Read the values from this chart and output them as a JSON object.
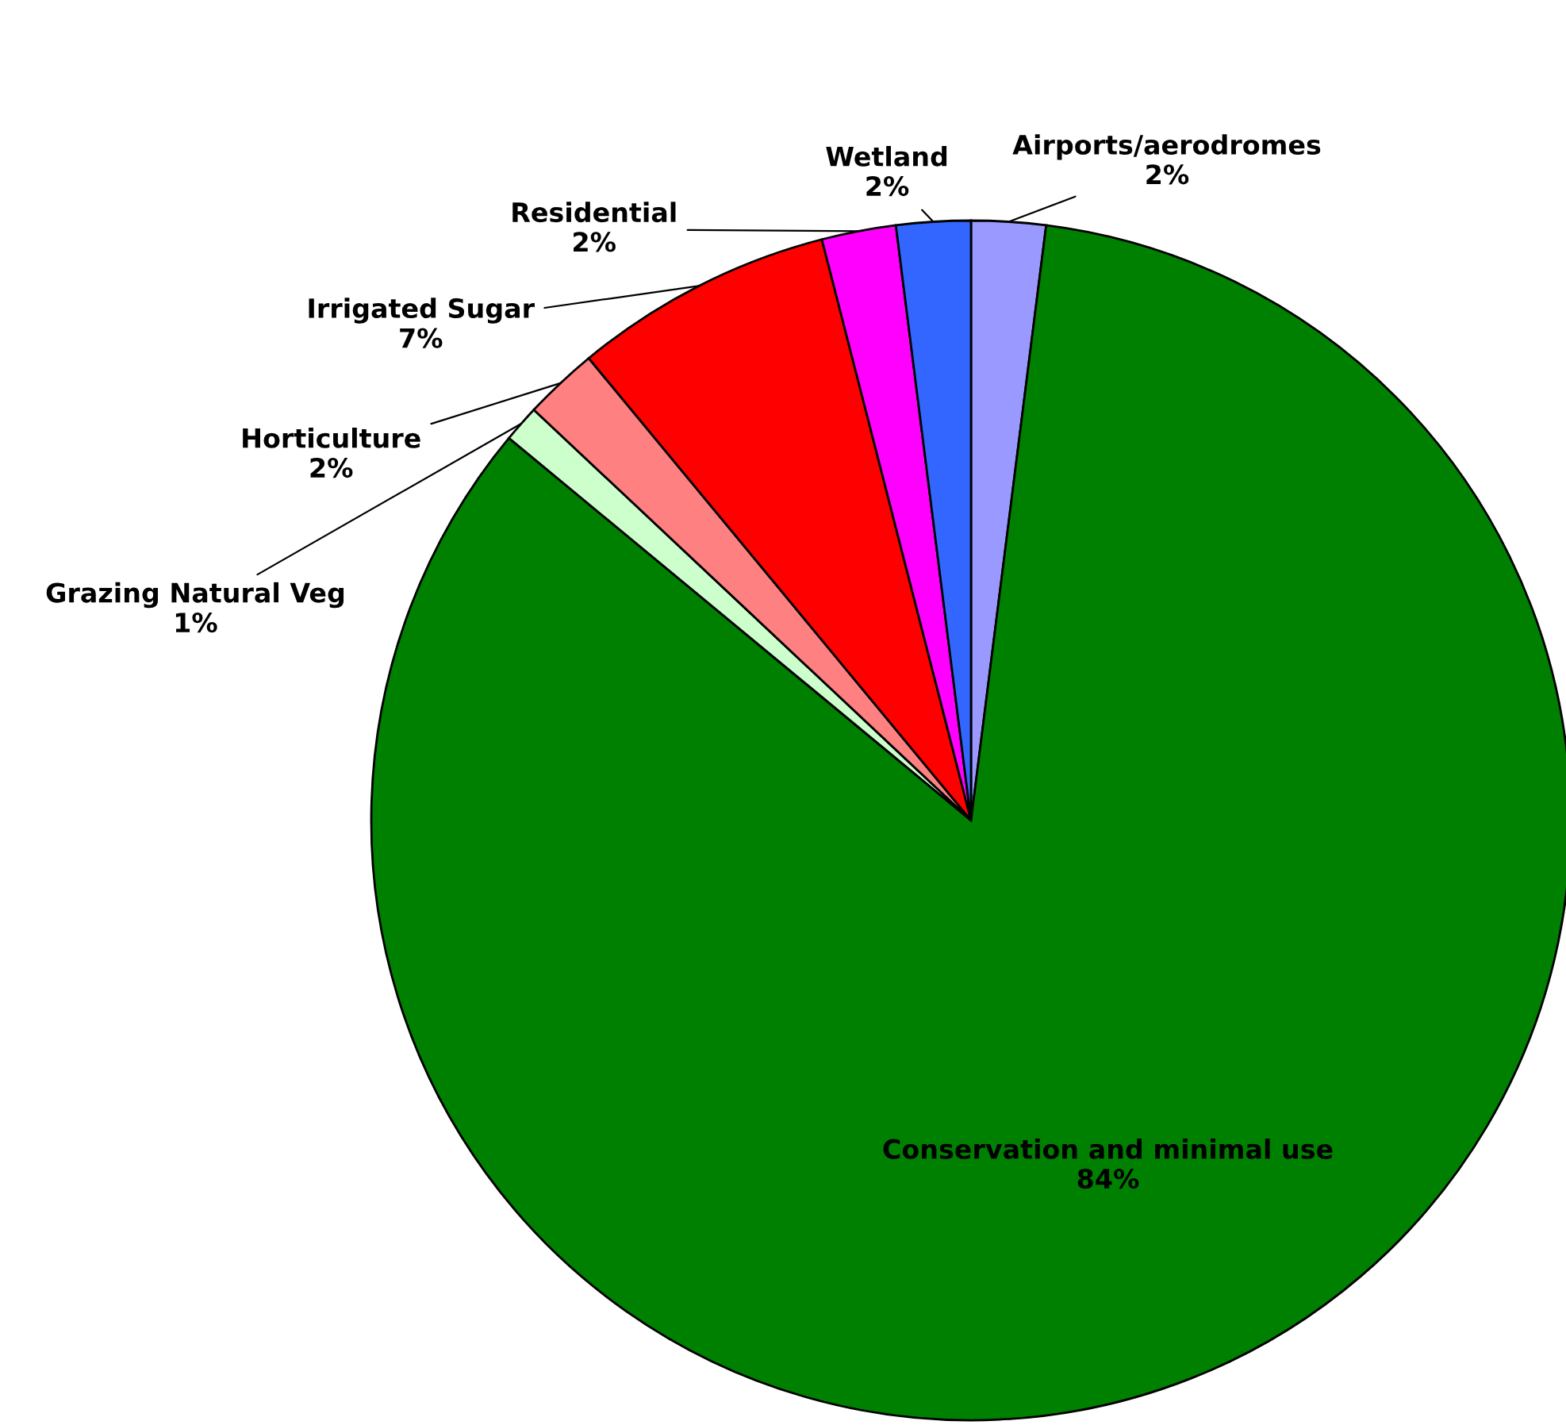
{
  "chart_data": {
    "type": "pie",
    "categories": [
      "Airports/aerodromes",
      "Conservation and minimal use",
      "Grazing Natural Veg",
      "Horticulture",
      "Irrigated Sugar",
      "Residential",
      "Wetland"
    ],
    "values": [
      2,
      84,
      1,
      2,
      7,
      2,
      2
    ],
    "value_labels": [
      "2%",
      "84%",
      "1%",
      "2%",
      "7%",
      "2%",
      "2%"
    ],
    "colors": [
      "#9999ff",
      "#008000",
      "#ccffcc",
      "#ff8080",
      "#ff0000",
      "#ff00ff",
      "#3366ff"
    ],
    "legend": false
  }
}
